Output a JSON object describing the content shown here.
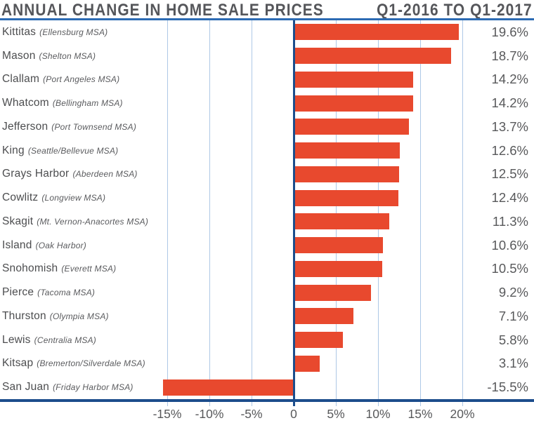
{
  "header": {
    "title": "ANNUAL CHANGE IN HOME SALE PRICES",
    "period": "Q1-2016 TO Q1-2017"
  },
  "colors": {
    "bar": "#e8492e",
    "axis_navy": "#1c4d8c",
    "header_rule_blue": "#2c6bb3",
    "gridline_blue": "#aec8e6",
    "text_gray": "#58595b"
  },
  "chart_data": {
    "type": "bar",
    "orientation": "horizontal",
    "title": "ANNUAL CHANGE IN HOME SALE PRICES",
    "subtitle": "Q1-2016 TO Q1-2017",
    "xlabel": "",
    "ylabel": "",
    "axis_range_percent": [
      -15,
      20
    ],
    "grid": true,
    "legend": false,
    "ticks": [
      {
        "value": -15,
        "label": "-15%"
      },
      {
        "value": -10,
        "label": "-10%"
      },
      {
        "value": -5,
        "label": "-5%"
      },
      {
        "value": 0,
        "label": "0"
      },
      {
        "value": 5,
        "label": "5%"
      },
      {
        "value": 10,
        "label": "10%"
      },
      {
        "value": 15,
        "label": "15%"
      },
      {
        "value": 20,
        "label": "20%"
      }
    ],
    "rows": [
      {
        "county": "Kittitas",
        "msa": "(Ellensburg MSA)",
        "value": 19.6,
        "label": "19.6%"
      },
      {
        "county": "Mason",
        "msa": "(Shelton MSA)",
        "value": 18.7,
        "label": "18.7%"
      },
      {
        "county": "Clallam",
        "msa": "(Port Angeles MSA)",
        "value": 14.2,
        "label": "14.2%"
      },
      {
        "county": "Whatcom",
        "msa": "(Bellingham MSA)",
        "value": 14.2,
        "label": "14.2%"
      },
      {
        "county": "Jefferson",
        "msa": "(Port Townsend MSA)",
        "value": 13.7,
        "label": "13.7%"
      },
      {
        "county": "King",
        "msa": "(Seattle/Bellevue MSA)",
        "value": 12.6,
        "label": "12.6%"
      },
      {
        "county": "Grays Harbor",
        "msa": "(Aberdeen MSA)",
        "value": 12.5,
        "label": "12.5%"
      },
      {
        "county": "Cowlitz",
        "msa": "(Longview MSA)",
        "value": 12.4,
        "label": "12.4%"
      },
      {
        "county": "Skagit",
        "msa": "(Mt. Vernon-Anacortes MSA)",
        "value": 11.3,
        "label": "11.3%"
      },
      {
        "county": "Island",
        "msa": "(Oak Harbor)",
        "value": 10.6,
        "label": "10.6%"
      },
      {
        "county": "Snohomish",
        "msa": "(Everett MSA)",
        "value": 10.5,
        "label": "10.5%"
      },
      {
        "county": "Pierce",
        "msa": "(Tacoma MSA)",
        "value": 9.2,
        "label": "9.2%"
      },
      {
        "county": "Thurston",
        "msa": "(Olympia MSA)",
        "value": 7.1,
        "label": "7.1%"
      },
      {
        "county": "Lewis",
        "msa": "(Centralia MSA)",
        "value": 5.8,
        "label": "5.8%"
      },
      {
        "county": "Kitsap",
        "msa": "(Bremerton/Silverdale MSA)",
        "value": 3.1,
        "label": "3.1%"
      },
      {
        "county": "San Juan",
        "msa": "(Friday Harbor MSA)",
        "value": -15.5,
        "label": "-15.5%"
      }
    ]
  }
}
